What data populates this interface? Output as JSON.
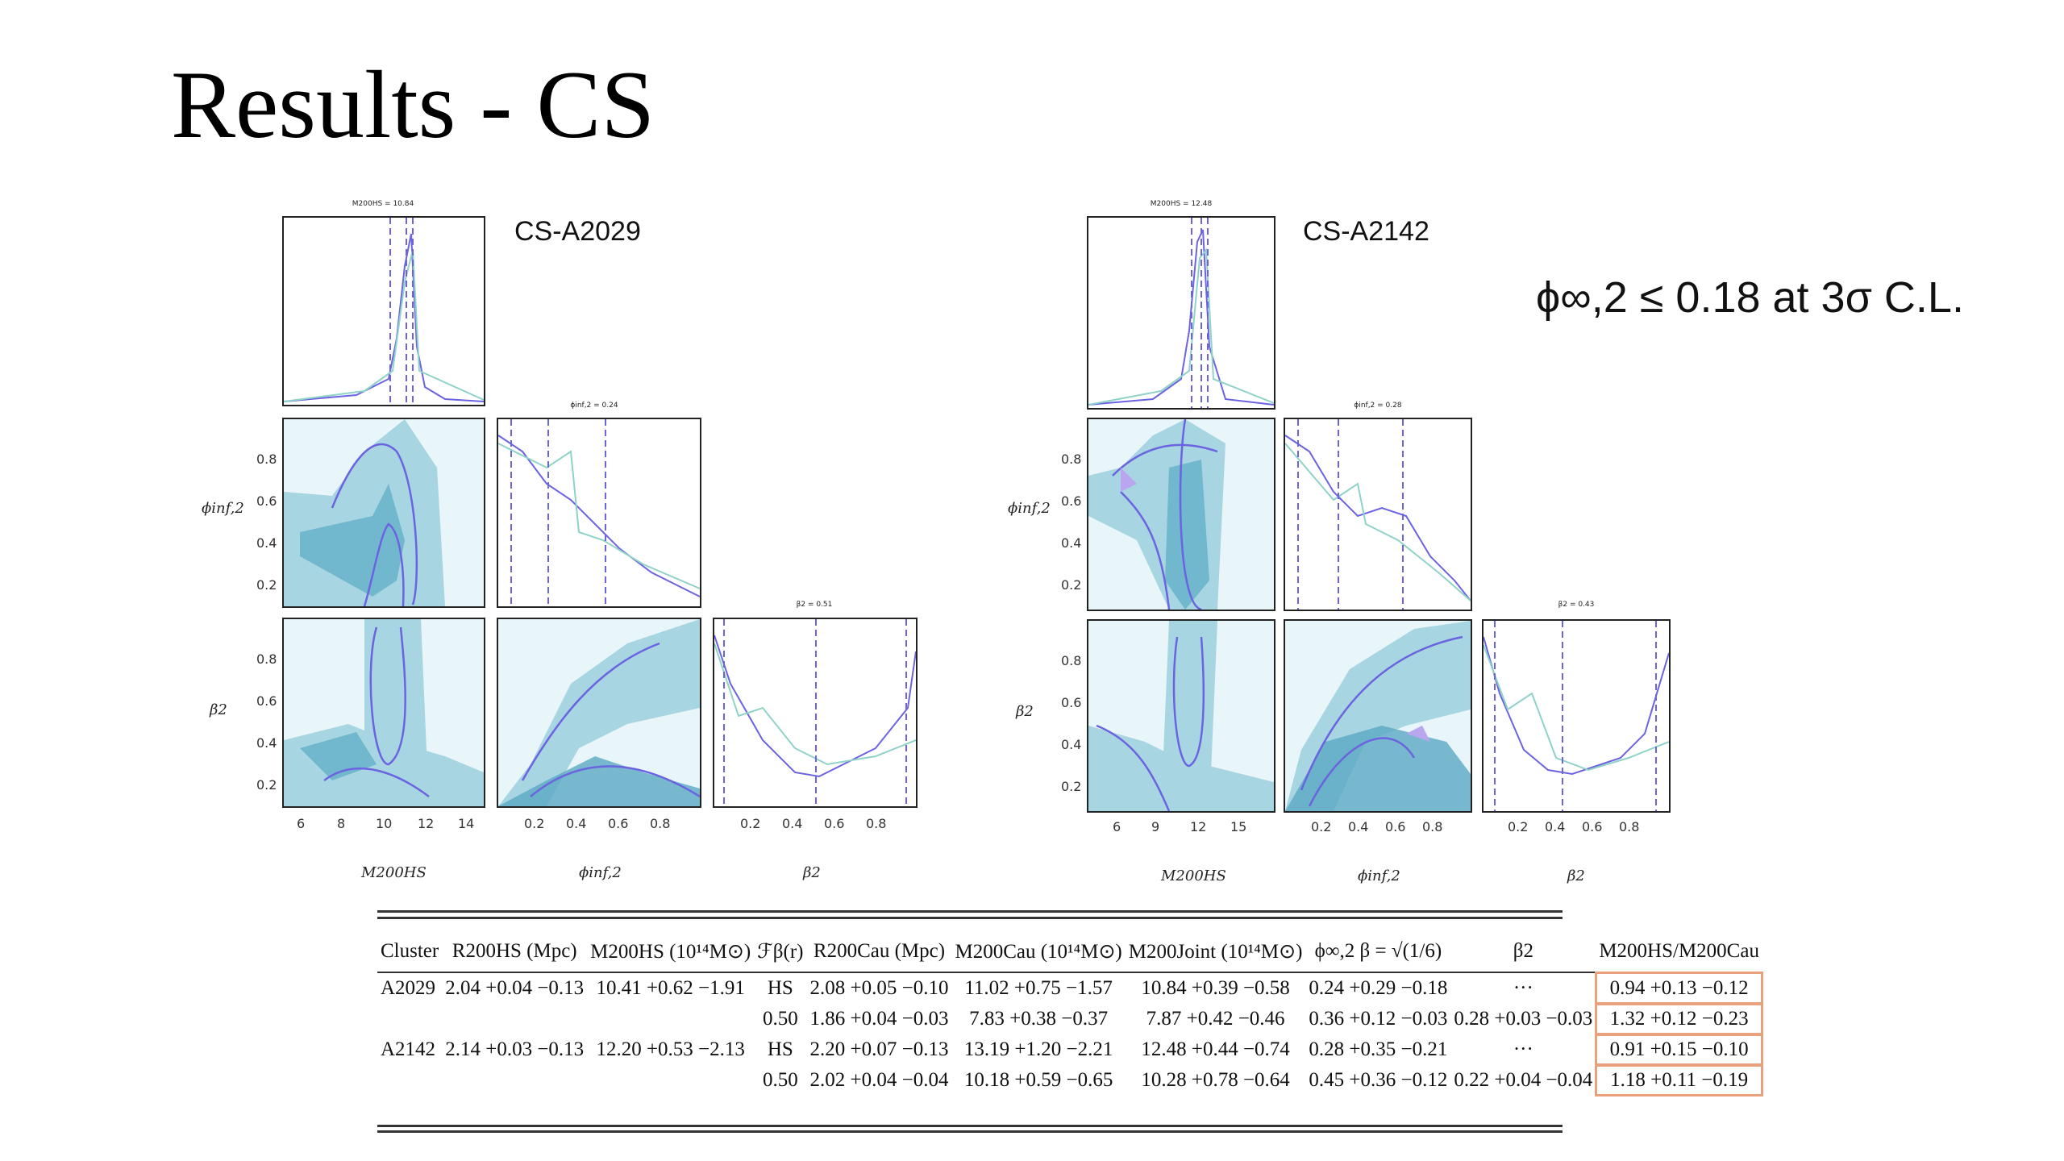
{
  "slide": {
    "title": "Results - CS",
    "result_text": "ϕ∞,2 ≤ 0.18 at 3σ C.L."
  },
  "corners": [
    {
      "name": "CS-A2029",
      "caps": [
        "M200HS = 10.84",
        "ϕinf,2 = 0.24",
        "β2 = 0.51"
      ],
      "ylabels": [
        "ϕinf,2",
        "β2"
      ],
      "xlabels": [
        "M200HS",
        "ϕinf,2",
        "β2"
      ],
      "xticks_m": [
        "6",
        "8",
        "10",
        "12",
        "14"
      ],
      "xticks_phi": [
        "0.2",
        "0.4",
        "0.6",
        "0.8"
      ],
      "xticks_beta": [
        "0.2",
        "0.4",
        "0.6",
        "0.8"
      ],
      "yticks": [
        "0.8",
        "0.6",
        "0.4",
        "0.2"
      ]
    },
    {
      "name": "CS-A2142",
      "caps": [
        "M200HS = 12.48",
        "ϕinf,2 = 0.28",
        "β2 = 0.43"
      ],
      "ylabels": [
        "ϕinf,2",
        "β2"
      ],
      "xlabels": [
        "M200HS",
        "ϕinf,2",
        "β2"
      ],
      "xticks_m": [
        "6",
        "9",
        "12",
        "15"
      ],
      "xticks_phi": [
        "0.2",
        "0.4",
        "0.6",
        "0.8"
      ],
      "xticks_beta": [
        "0.2",
        "0.4",
        "0.6",
        "0.8"
      ],
      "yticks": [
        "0.8",
        "0.6",
        "0.4",
        "0.2"
      ]
    }
  ],
  "table": {
    "headers": [
      "Cluster",
      "R200HS (Mpc)",
      "M200HS (10¹⁴M⊙)",
      "ℱβ(r)",
      "R200Cau (Mpc)",
      "M200Cau (10¹⁴M⊙)",
      "M200Joint (10¹⁴M⊙)",
      "ϕ∞,2 β = √(1/6)",
      "β2",
      "M200HS/M200Cau"
    ],
    "rows": [
      [
        "A2029",
        "2.04 +0.04 −0.13",
        "10.41 +0.62 −1.91",
        "HS",
        "2.08 +0.05 −0.10",
        "11.02 +0.75 −1.57",
        "10.84 +0.39 −0.58",
        "0.24 +0.29 −0.18",
        "···",
        "0.94 +0.13 −0.12"
      ],
      [
        "",
        "",
        "",
        "0.50",
        "1.86 +0.04 −0.03",
        "7.83 +0.38 −0.37",
        "7.87 +0.42 −0.46",
        "0.36 +0.12 −0.03",
        "0.28 +0.03 −0.03",
        "1.32 +0.12 −0.23"
      ],
      [
        "A2142",
        "2.14 +0.03 −0.13",
        "12.20 +0.53 −2.13",
        "HS",
        "2.20 +0.07 −0.13",
        "13.19 +1.20 −2.21",
        "12.48 +0.44 −0.74",
        "0.28 +0.35 −0.21",
        "···",
        "0.91 +0.15 −0.10"
      ],
      [
        "",
        "",
        "",
        "0.50",
        "2.02 +0.04 −0.04",
        "10.18 +0.59 −0.65",
        "10.28 +0.78 −0.64",
        "0.45 +0.36 −0.12",
        "0.22 +0.04 −0.04",
        "1.18 +0.11 −0.19"
      ]
    ]
  },
  "colors": {
    "contour_fill": "#a8d5e2",
    "contour_dark": "#5aa9c4",
    "line": "#6b63e0",
    "hist2": "#8fd3c8"
  }
}
